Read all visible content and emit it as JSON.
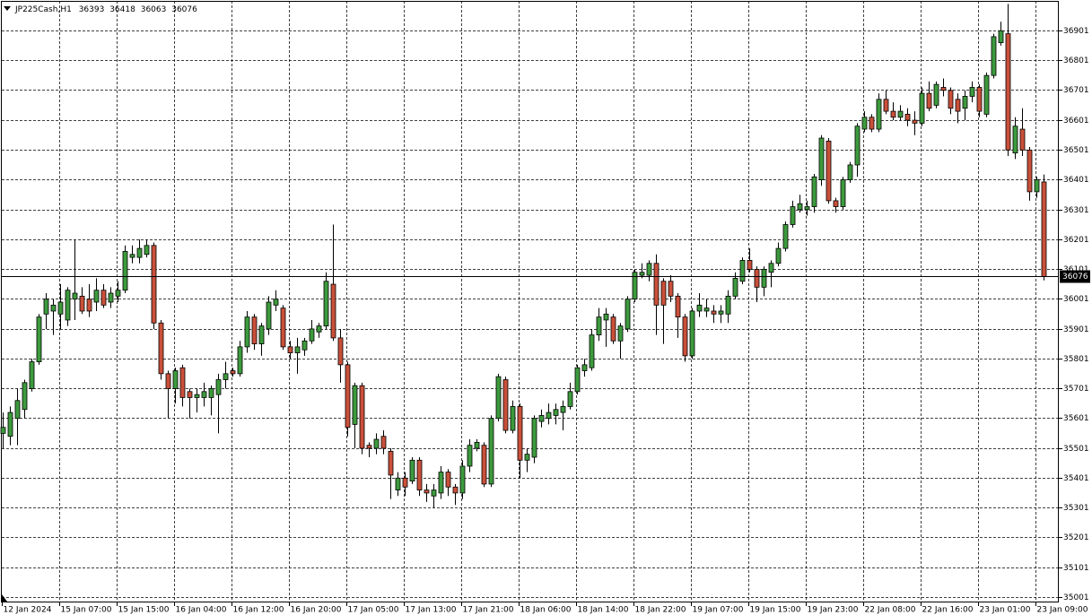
{
  "chart_data": {
    "type": "candlestick",
    "title": "JP225Cash,H1",
    "categories": [
      "12 Jan 2024",
      null,
      null,
      null,
      null,
      null,
      null,
      null,
      "15 Jan 07:00",
      null,
      null,
      null,
      null,
      null,
      null,
      null,
      "15 Jan 15:00",
      null,
      null,
      null,
      null,
      null,
      null,
      null,
      "16 Jan 04:00",
      null,
      null,
      null,
      null,
      null,
      null,
      null,
      "16 Jan 12:00",
      null,
      null,
      null,
      null,
      null,
      null,
      null,
      "16 Jan 20:00",
      null,
      null,
      null,
      null,
      null,
      null,
      null,
      "17 Jan 05:00",
      null,
      null,
      null,
      null,
      null,
      null,
      null,
      "17 Jan 13:00",
      null,
      null,
      null,
      null,
      null,
      null,
      null,
      "17 Jan 21:00",
      null,
      null,
      null,
      null,
      null,
      null,
      null,
      "18 Jan 06:00",
      null,
      null,
      null,
      null,
      null,
      null,
      null,
      "18 Jan 14:00",
      null,
      null,
      null,
      null,
      null,
      null,
      null,
      "18 Jan 22:00",
      null,
      null,
      null,
      null,
      null,
      null,
      null,
      "19 Jan 07:00",
      null,
      null,
      null,
      null,
      null,
      null,
      null,
      "19 Jan 15:00",
      null,
      null,
      null,
      null,
      null,
      null,
      null,
      "19 Jan 23:00",
      null,
      null,
      null,
      null,
      null,
      null,
      null,
      "22 Jan 08:00",
      null,
      null,
      null,
      null,
      null,
      null,
      null,
      "22 Jan 16:00",
      null,
      null,
      null,
      null,
      null,
      null,
      null,
      "23 Jan 01:00",
      null,
      null,
      null,
      null,
      null,
      null,
      null,
      "23 Jan 09:00",
      null
    ],
    "open": [
      35550,
      35540,
      35600,
      35630,
      35700,
      35790,
      35950,
      35960,
      35950,
      35930,
      36000,
      36010,
      36000,
      35990,
      36030,
      35990,
      36010,
      36030,
      36140,
      36140,
      36150,
      36180,
      35920,
      35750,
      35700,
      35770,
      35690,
      35670,
      35670,
      35670,
      35680,
      35730,
      35760,
      35750,
      35840,
      35940,
      35850,
      35900,
      35980,
      35970,
      35840,
      35820,
      35830,
      35860,
      35890,
      35910,
      36050,
      35870,
      35780,
      35580,
      35710,
      35510,
      35500,
      35540,
      35490,
      35360,
      35400,
      35390,
      35460,
      35360,
      35340,
      35350,
      35420,
      35370,
      35350,
      35440,
      35500,
      35510,
      35380,
      35600,
      35730,
      35560,
      35640,
      35460,
      35470,
      35590,
      35600,
      35610,
      35620,
      35640,
      35690,
      35760,
      35770,
      35880,
      35930,
      35940,
      35860,
      35900,
      36000,
      36080,
      36080,
      36120,
      36060,
      36060,
      36010,
      35940,
      35810,
      35960,
      35960,
      35960,
      35950,
      35950,
      36010,
      36060,
      36130,
      36100,
      36040,
      36090,
      36120,
      36170,
      36250,
      36300,
      36300,
      36310,
      36400,
      36530,
      36330,
      36310,
      36400,
      36450,
      36570,
      36610,
      36570,
      36670,
      36630,
      36610,
      36620,
      36600,
      36590,
      36690,
      36650,
      36710,
      36700,
      36670,
      36640,
      36680,
      36710,
      36620,
      36750,
      36860,
      36890,
      36490,
      36570,
      36500,
      36360,
      36393
    ],
    "high": [
      35620,
      35640,
      35700,
      35730,
      35800,
      35950,
      36020,
      36000,
      36050,
      36040,
      36200,
      36040,
      36050,
      36070,
      36050,
      36040,
      36060,
      36180,
      36180,
      36200,
      36200,
      36190,
      35930,
      35760,
      35770,
      35780,
      35700,
      35700,
      35720,
      35710,
      35750,
      35790,
      35770,
      35860,
      35960,
      35950,
      35920,
      36010,
      36030,
      35980,
      35860,
      35870,
      35870,
      35930,
      35920,
      36090,
      36250,
      35900,
      35790,
      35720,
      35720,
      35520,
      35550,
      35560,
      35500,
      35420,
      35420,
      35470,
      35470,
      35380,
      35380,
      35440,
      35430,
      35380,
      35460,
      35530,
      35530,
      35520,
      35610,
      35750,
      35740,
      35660,
      35650,
      35500,
      35610,
      35630,
      35650,
      35650,
      35660,
      35720,
      35780,
      35800,
      35900,
      35970,
      35970,
      35950,
      35920,
      36010,
      36100,
      36120,
      36130,
      36150,
      36070,
      36080,
      36020,
      35950,
      35970,
      36020,
      36000,
      35980,
      35980,
      36030,
      36090,
      36140,
      36170,
      36110,
      36110,
      36130,
      36190,
      36260,
      36330,
      36350,
      36330,
      36420,
      36550,
      36540,
      36340,
      36410,
      36460,
      36590,
      36630,
      36620,
      36690,
      36700,
      36660,
      36650,
      36640,
      36630,
      36710,
      36730,
      36730,
      36740,
      36710,
      36690,
      36700,
      36730,
      36720,
      36760,
      36890,
      36930,
      36990,
      36610,
      36640,
      36510,
      36410,
      36418
    ],
    "low": [
      35500,
      35510,
      35510,
      35600,
      35690,
      35780,
      35900,
      35880,
      35900,
      35910,
      35930,
      35950,
      35940,
      35960,
      35970,
      35970,
      35990,
      36020,
      36120,
      36120,
      36140,
      35900,
      35730,
      35600,
      35650,
      35640,
      35600,
      35620,
      35640,
      35610,
      35550,
      35700,
      35740,
      35740,
      35820,
      35830,
      35810,
      35880,
      35960,
      35830,
      35800,
      35750,
      35810,
      35850,
      35870,
      35900,
      35860,
      35720,
      35540,
      35500,
      35480,
      35470,
      35480,
      35480,
      35330,
      35340,
      35340,
      35380,
      35340,
      35320,
      35300,
      35330,
      35340,
      35310,
      35330,
      35420,
      35490,
      35370,
      35370,
      35590,
      35550,
      35550,
      35400,
      35420,
      35450,
      35570,
      35580,
      35580,
      35560,
      35630,
      35680,
      35740,
      35760,
      35860,
      35840,
      35850,
      35800,
      35890,
      35990,
      36070,
      36060,
      35880,
      35850,
      35990,
      35870,
      35790,
      35800,
      35940,
      35940,
      35920,
      35920,
      35920,
      36000,
      36050,
      36090,
      35990,
      36010,
      36040,
      36110,
      36160,
      36240,
      36290,
      36280,
      36290,
      36380,
      36320,
      36290,
      36300,
      36390,
      36410,
      36560,
      36560,
      36560,
      36620,
      36600,
      36600,
      36580,
      36550,
      36580,
      36630,
      36640,
      36680,
      36620,
      36590,
      36600,
      36660,
      36610,
      36610,
      36740,
      36850,
      36480,
      36470,
      36480,
      36330,
      36340,
      36063
    ],
    "close": [
      35570,
      35620,
      35660,
      35720,
      35790,
      35940,
      36000,
      35980,
      35990,
      36030,
      36020,
      35960,
      35960,
      36030,
      35980,
      36020,
      36030,
      36160,
      36150,
      36170,
      36180,
      35920,
      35750,
      35700,
      35760,
      35670,
      35670,
      35680,
      35690,
      35700,
      35730,
      35750,
      35750,
      35840,
      35940,
      35850,
      35910,
      35990,
      36000,
      35840,
      35820,
      35840,
      35860,
      35900,
      35910,
      36060,
      35870,
      35780,
      35570,
      35710,
      35500,
      35500,
      35530,
      35500,
      35410,
      35400,
      35370,
      35460,
      35360,
      35350,
      35360,
      35420,
      35370,
      35350,
      35440,
      35510,
      35520,
      35380,
      35600,
      35740,
      35560,
      35640,
      35460,
      35480,
      35600,
      35610,
      35620,
      35630,
      35640,
      35690,
      35770,
      35780,
      35880,
      35940,
      35950,
      35860,
      35910,
      36000,
      36090,
      36090,
      36120,
      35980,
      35980,
      36010,
      35940,
      35810,
      35960,
      35980,
      35970,
      35950,
      35960,
      36010,
      36070,
      36130,
      36100,
      36040,
      36100,
      36120,
      36170,
      36250,
      36310,
      36320,
      36310,
      36410,
      36540,
      36330,
      36310,
      36400,
      36450,
      36580,
      36610,
      36570,
      36670,
      36630,
      36610,
      36630,
      36600,
      36590,
      36690,
      36640,
      36720,
      36700,
      36640,
      36630,
      36680,
      36710,
      36630,
      36750,
      36880,
      36900,
      36500,
      36580,
      36500,
      36360,
      36400,
      36076
    ],
    "up_color": "#3d9a3d",
    "down_color": "#c9503a",
    "ylim": [
      34983,
      37000
    ],
    "yticks": [
      35001,
      35101,
      35201,
      35301,
      35401,
      35501,
      35601,
      35701,
      35801,
      35901,
      36001,
      36101,
      36201,
      36301,
      36401,
      36501,
      36601,
      36701,
      36801,
      36901
    ],
    "grid": true
  }
}
